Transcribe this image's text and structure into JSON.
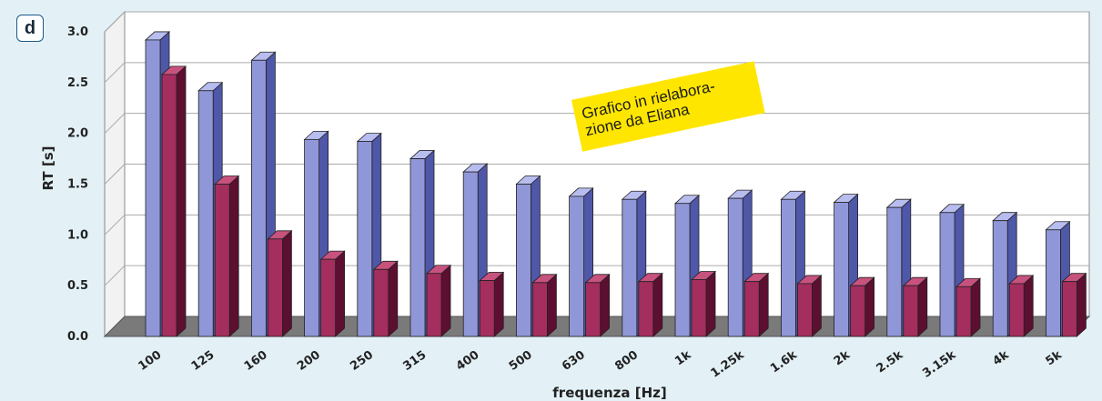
{
  "panel_label": "d",
  "note": {
    "line1": "Grafico in rielabora-",
    "line2": "zione da Eliana"
  },
  "colors": {
    "series_a_front": "#9097d8",
    "series_a_side": "#4f57a8",
    "series_a_top": "#b8bdef",
    "series_b_front": "#a42e5e",
    "series_b_side": "#5c0f30",
    "series_b_top": "#c8527e",
    "plot_wall": "#ffffff",
    "floor": "#7a7a7a",
    "note_bg": "#ffe600"
  },
  "chart_data": {
    "type": "bar",
    "title": "",
    "xlabel": "frequenza [Hz]",
    "ylabel": "RT [s]",
    "ylim": [
      0,
      3.0
    ],
    "yticks": [
      "0.0",
      "0.5",
      "1.0",
      "1.5",
      "2.0",
      "2.5",
      "3.0"
    ],
    "grid": true,
    "categories": [
      "100",
      "125",
      "160",
      "200",
      "250",
      "315",
      "400",
      "500",
      "630",
      "800",
      "1k",
      "1.25k",
      "1.6k",
      "2k",
      "2.5k",
      "3.15k",
      "4k",
      "5k"
    ],
    "series": [
      {
        "values": [
          2.92,
          2.42,
          2.72,
          1.94,
          1.92,
          1.75,
          1.62,
          1.5,
          1.38,
          1.35,
          1.31,
          1.36,
          1.35,
          1.32,
          1.27,
          1.22,
          1.14,
          1.05
        ]
      },
      {
        "values": [
          2.58,
          1.5,
          0.96,
          0.76,
          0.66,
          0.62,
          0.55,
          0.53,
          0.53,
          0.54,
          0.56,
          0.54,
          0.52,
          0.5,
          0.5,
          0.49,
          0.52,
          0.54
        ]
      }
    ]
  }
}
